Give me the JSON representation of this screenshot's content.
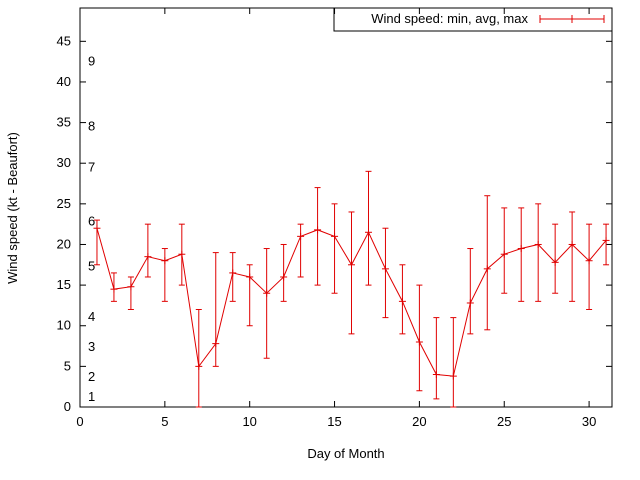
{
  "chart_data": {
    "type": "line",
    "title": "",
    "legend_label": "Wind speed: min, avg, max",
    "xlabel": "Day of Month",
    "ylabel": "Wind speed (kt - Beaufort)",
    "x_ticks": [
      0,
      5,
      10,
      15,
      20,
      25,
      30
    ],
    "y_ticks": [
      0,
      5,
      10,
      15,
      20,
      25,
      30,
      35,
      40,
      45
    ],
    "xlim": [
      0,
      31.35
    ],
    "ylim": [
      0,
      49.1
    ],
    "grid": false,
    "legend_position": "top-right-boxed",
    "series_color": "#e00000",
    "axis_color": "#000000",
    "beaufort_labels": [
      {
        "b": "1",
        "kt": 1.2
      },
      {
        "b": "2",
        "kt": 3.7
      },
      {
        "b": "3",
        "kt": 7.4
      },
      {
        "b": "4",
        "kt": 11.1
      },
      {
        "b": "5",
        "kt": 17.3
      },
      {
        "b": "6",
        "kt": 22.8
      },
      {
        "b": "7",
        "kt": 29.5
      },
      {
        "b": "8",
        "kt": 34.5
      },
      {
        "b": "9",
        "kt": 42.5
      }
    ],
    "days": [
      1,
      2,
      3,
      4,
      5,
      6,
      7,
      8,
      9,
      10,
      11,
      12,
      13,
      14,
      15,
      16,
      17,
      18,
      19,
      20,
      21,
      22,
      23,
      24,
      25,
      26,
      27,
      28,
      29,
      30,
      31
    ],
    "series": [
      {
        "name": "min",
        "values": [
          17.5,
          13,
          12,
          16,
          13,
          15,
          0,
          5,
          13,
          10,
          6,
          13,
          16,
          15,
          14,
          9,
          15,
          11,
          9,
          2,
          1,
          0,
          9,
          9.5,
          14,
          13,
          13,
          14,
          13,
          12,
          17.5
        ]
      },
      {
        "name": "avg",
        "values": [
          22,
          14.5,
          14.8,
          18.5,
          18,
          18.8,
          5,
          7.8,
          16.5,
          16,
          14,
          16,
          21,
          21.8,
          21,
          17.5,
          21.5,
          17,
          13,
          8,
          4,
          3.8,
          12.8,
          17,
          18.8,
          19.5,
          20,
          17.8,
          20,
          18,
          20.5
        ]
      },
      {
        "name": "max",
        "values": [
          23,
          16.5,
          16,
          22.5,
          19.5,
          22.5,
          12,
          19,
          19,
          17.5,
          19.5,
          20,
          22.5,
          27,
          25,
          24,
          29,
          22,
          17.5,
          15,
          11,
          11,
          19.5,
          26,
          24.5,
          24.5,
          25,
          22.5,
          24,
          22.5,
          22.5
        ]
      }
    ]
  }
}
